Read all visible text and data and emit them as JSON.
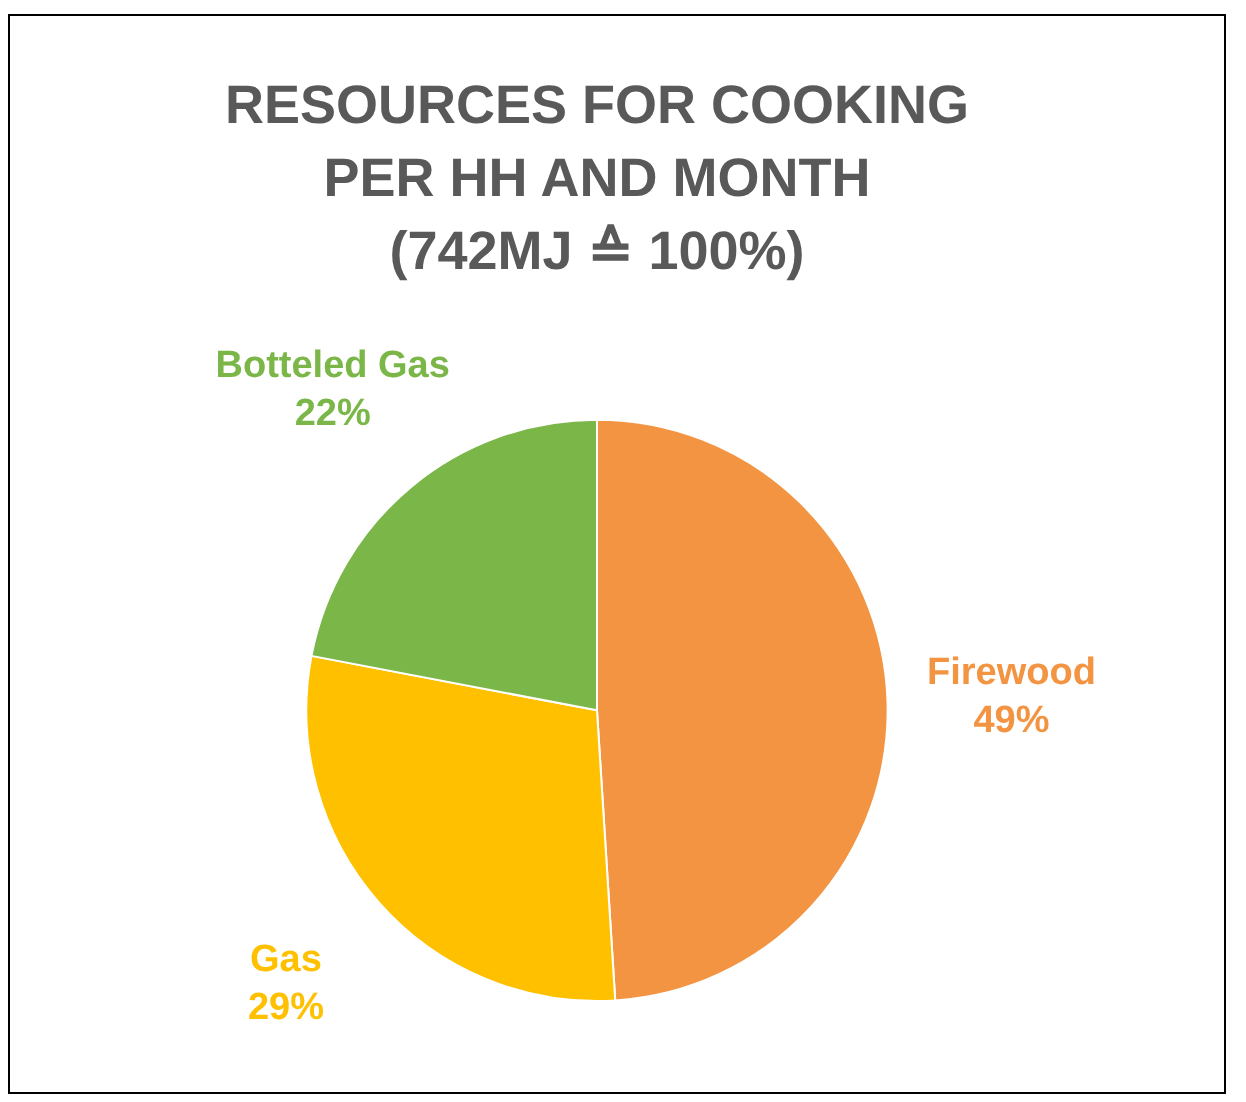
{
  "chart_data": {
    "type": "pie",
    "title": "RESOURCES FOR COOKING\nPER HH AND MONTH\n(742MJ ≙ 100%)",
    "categories": [
      "Firewood",
      "Gas",
      "Botteled Gas"
    ],
    "values": [
      49,
      29,
      22
    ],
    "colors": [
      "#f39443",
      "#ffc000",
      "#7ab648"
    ],
    "value_labels": [
      "49%",
      "29%",
      "22%"
    ],
    "legend": false
  }
}
